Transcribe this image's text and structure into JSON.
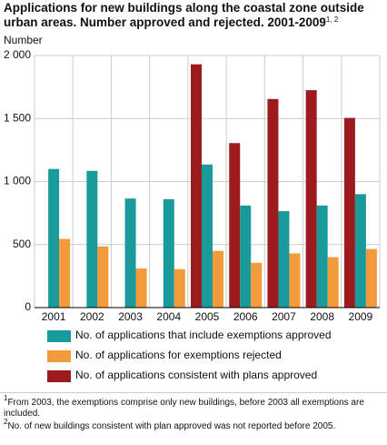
{
  "chart_data": {
    "type": "bar",
    "title": "Applications for new buildings along the coastal zone outside urban areas. Number approved and rejected. 2001-2009",
    "title_note": "1, 2",
    "y_label": "Number",
    "categories": [
      "2001",
      "2002",
      "2003",
      "2004",
      "2005",
      "2006",
      "2007",
      "2008",
      "2009"
    ],
    "series": [
      {
        "name": "No. of applications consistent with plans approved",
        "color": "#9b1b1f",
        "values": [
          null,
          null,
          null,
          null,
          1930,
          1305,
          1655,
          1725,
          1505
        ]
      },
      {
        "name": "No. of applications that include exemptions approved",
        "color": "#1a9a9a",
        "values": [
          1100,
          1085,
          865,
          860,
          1135,
          810,
          765,
          810,
          900
        ]
      },
      {
        "name": "No. of applications for exemptions rejected",
        "color": "#f39a3a",
        "values": [
          545,
          485,
          310,
          305,
          450,
          355,
          430,
          400,
          465
        ]
      }
    ],
    "legend_order": [
      1,
      2,
      0
    ],
    "ylim": [
      0,
      2000
    ],
    "yticks": [
      0,
      500,
      {
        "value": 1000,
        "label": "1 000"
      },
      {
        "value": 1500,
        "label": "1 500"
      },
      {
        "value": 2000,
        "label": "2 000"
      }
    ],
    "grid": true,
    "footnotes": [
      {
        "marker": "1",
        "text": "From 2003, the exemptions comprise only new buildings, before 2003 all exemptions are included."
      },
      {
        "marker": "2",
        "text": "No. of new buildings consistent with plan approved was not reported before 2005."
      }
    ]
  }
}
